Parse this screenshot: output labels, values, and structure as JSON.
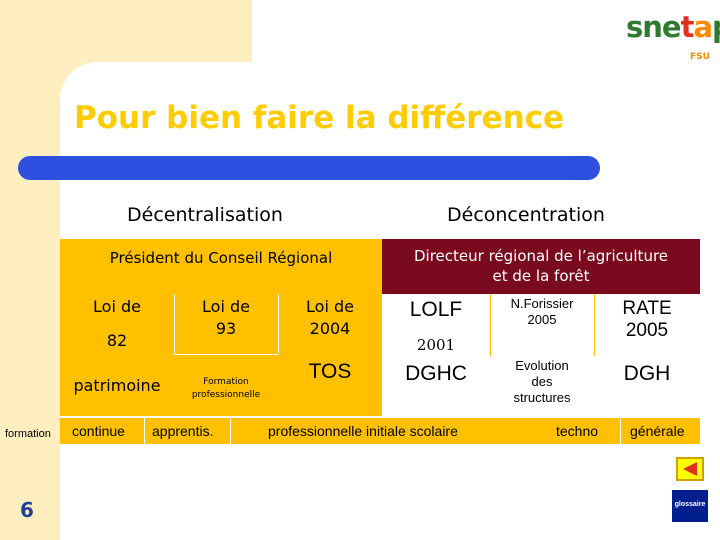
{
  "title": "Pour bien faire la différence",
  "headings": {
    "left": "Décentralisation",
    "right": "Déconcentration"
  },
  "bands": {
    "left": "Président du Conseil Régional",
    "right_line1": "Directeur régional de l’agriculture",
    "right_line2": "et de la forêt"
  },
  "left_cells": {
    "loi82_a": "Loi de",
    "loi82_b": "82",
    "loi93_a": "Loi de",
    "loi93_b": "93",
    "loi2004_a": "Loi de",
    "loi2004_b": "2004",
    "patrimoine": "patrimoine",
    "formation_pro_a": "Formation",
    "formation_pro_b": "professionnelle",
    "tos": "TOS"
  },
  "right_cells": {
    "lolf": "LOLF",
    "year2001": "2001",
    "forissier_a": "N.Forissier",
    "forissier_b": "2005",
    "rate_a": "RATE",
    "rate_b": "2005",
    "dghc": "DGHC",
    "evolution_a": "Evolution",
    "evolution_b": "des",
    "evolution_c": "structures",
    "dgh": "DGH"
  },
  "bottom_row": {
    "continue": "continue",
    "apprentis": "apprentis.",
    "initiale": "professionnelle initiale scolaire",
    "techno": "techno",
    "generale": "générale"
  },
  "side_label": "formation",
  "page_number": "6",
  "logo": {
    "text": "snetap",
    "sub": "FSU"
  },
  "nav": {
    "glossaire": "glossaire"
  },
  "colors": {
    "cream": "#ffeec0",
    "orange": "#ffc000",
    "maroon": "#7a0a1e",
    "blue": "#2d50e0",
    "title": "#ffcc00"
  }
}
